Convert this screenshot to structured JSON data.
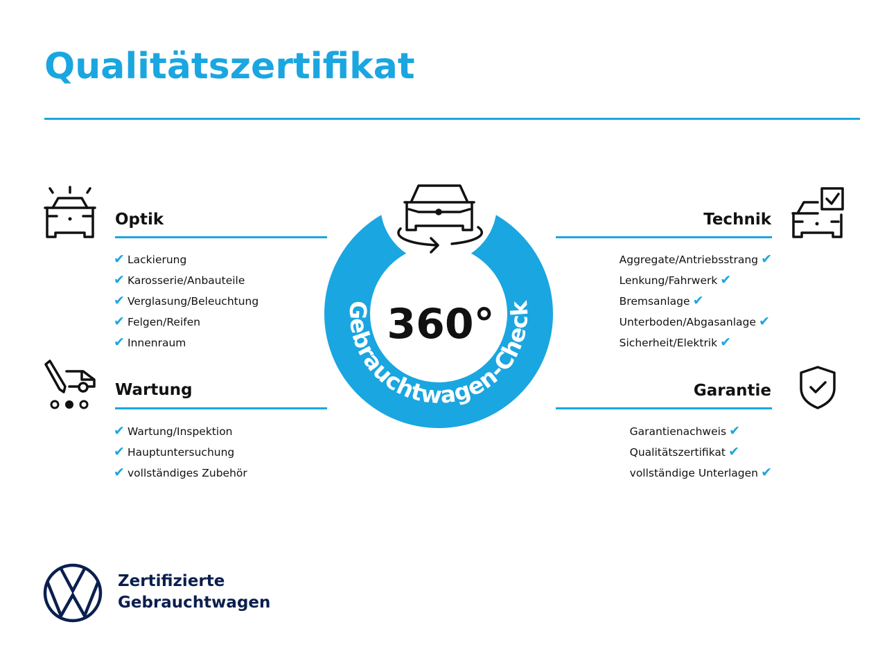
{
  "title": "Qualitätszertifikat",
  "colors": {
    "accent": "#1aa6e0",
    "brand_navy": "#0b1f4f",
    "text": "#111111"
  },
  "center_badge": {
    "value": "360°",
    "arc_text": "Gebrauchtwagen-Check",
    "icon": "car-rotate-icon"
  },
  "sections": {
    "optik": {
      "heading": "Optik",
      "icon": "car-lights-icon",
      "items": [
        "Lackierung",
        "Karosserie/Anbauteile",
        "Verglasung/Beleuchtung",
        "Felgen/Reifen",
        "Innenraum"
      ]
    },
    "wartung": {
      "heading": "Wartung",
      "icon": "service-van-tool-icon",
      "items": [
        "Wartung/Inspektion",
        "Hauptuntersuchung",
        "vollständiges Zubehör"
      ]
    },
    "technik": {
      "heading": "Technik",
      "icon": "car-checkbox-icon",
      "items": [
        "Aggregate/Antriebsstrang",
        "Lenkung/Fahrwerk",
        "Bremsanlage",
        "Unterboden/Abgasanlage",
        "Sicherheit/Elektrik"
      ]
    },
    "garantie": {
      "heading": "Garantie",
      "icon": "shield-check-icon",
      "items": [
        "Garantienachweis",
        "Qualitätszertifikat",
        "vollständige Unterlagen"
      ]
    }
  },
  "check_glyph": "✔",
  "footer": {
    "line1": "Zertifizierte",
    "line2": "Gebrauchtwagen",
    "logo": "vw-logo"
  }
}
